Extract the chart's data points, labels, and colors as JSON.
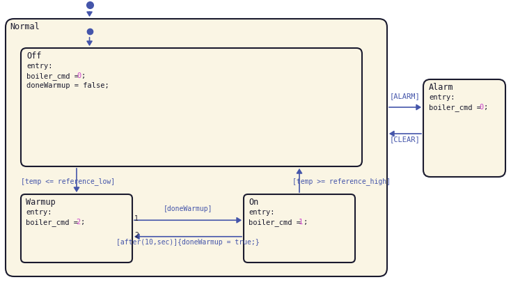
{
  "bg_color": "#ffffff",
  "state_fill": "#faf5e4",
  "state_edge": "#1a1a2e",
  "arrow_color": "#4455aa",
  "text_color": "#1a1a2e",
  "highlight_color": "#cc44cc",
  "label_color": "#4455aa",
  "figw": 7.34,
  "figh": 4.06,
  "dpi": 100,
  "normal_label": "Normal",
  "off_label": "Off",
  "warmup_label": "Warmup",
  "on_label": "On",
  "alarm_label": "Alarm",
  "trans_alarm": "[ALARM]",
  "trans_clear": "[CLEAR]",
  "trans_low": "[temp <= reference_low]",
  "trans_high": "[temp >= reference_high]",
  "trans_done": "[doneWarmup]",
  "trans_after": "[after(10,sec)]{doneWarmup = true;}"
}
